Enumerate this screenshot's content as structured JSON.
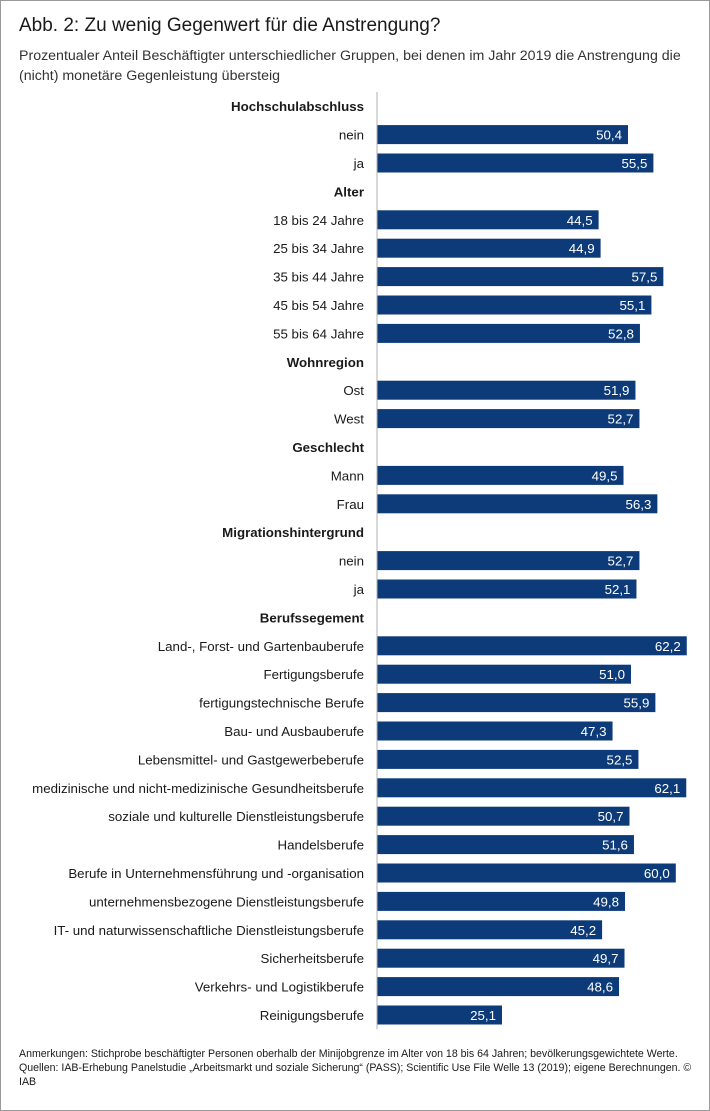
{
  "header": {
    "title": "Abb. 2: Zu wenig Gegenwert für die Anstrengung?",
    "subtitle": "Prozentualer Anteil Beschäftigter unterschiedlicher Gruppen, bei denen im Jahr 2019 die Anstrengung die (nicht) monetäre Gegenleistung übersteig"
  },
  "chart_data": {
    "type": "bar",
    "orientation": "horizontal",
    "bar_color": "#0d3b7a",
    "value_label_color": "#ffffff",
    "axis_line_color": "#b0b0b0",
    "grid": false,
    "legend": "none",
    "value_labels": "inside-end",
    "decimal_separator": ",",
    "groups": [
      {
        "name": "Hochschulabschluss",
        "items": [
          {
            "label": "nein",
            "value": 50.4
          },
          {
            "label": "ja",
            "value": 55.5
          }
        ]
      },
      {
        "name": "Alter",
        "items": [
          {
            "label": "18 bis 24 Jahre",
            "value": 44.5
          },
          {
            "label": "25 bis 34 Jahre",
            "value": 44.9
          },
          {
            "label": "35 bis 44 Jahre",
            "value": 57.5
          },
          {
            "label": "45 bis 54 Jahre",
            "value": 55.1
          },
          {
            "label": "55 bis 64 Jahre",
            "value": 52.8
          }
        ]
      },
      {
        "name": "Wohnregion",
        "items": [
          {
            "label": "Ost",
            "value": 51.9
          },
          {
            "label": "West",
            "value": 52.7
          }
        ]
      },
      {
        "name": "Geschlecht",
        "items": [
          {
            "label": "Mann",
            "value": 49.5
          },
          {
            "label": "Frau",
            "value": 56.3
          }
        ]
      },
      {
        "name": "Migrationshintergrund",
        "items": [
          {
            "label": "nein",
            "value": 52.7
          },
          {
            "label": "ja",
            "value": 52.1
          }
        ]
      },
      {
        "name": "Berufssegement",
        "items": [
          {
            "label": "Land-, Forst- und Gartenbauberufe",
            "value": 62.2
          },
          {
            "label": "Fertigungsberufe",
            "value": 51.0
          },
          {
            "label": "fertigungstechnische Berufe",
            "value": 55.9
          },
          {
            "label": "Bau- und Ausbauberufe",
            "value": 47.3
          },
          {
            "label": "Lebensmittel- und Gastgewerbeberufe",
            "value": 52.5
          },
          {
            "label": "medizinische und nicht-medizinische Gesundheitsberufe",
            "value": 62.1
          },
          {
            "label": "soziale und kulturelle Dienstleistungsberufe",
            "value": 50.7
          },
          {
            "label": "Handelsberufe",
            "value": 51.6
          },
          {
            "label": "Berufe in Unternehmensführung und -organisation",
            "value": 60.0
          },
          {
            "label": "unternehmensbezogene Dienstleistungsberufe",
            "value": 49.8
          },
          {
            "label": "IT- und naturwissenschaftliche Dienstleistungsberufe",
            "value": 45.2
          },
          {
            "label": "Sicherheitsberufe",
            "value": 49.7
          },
          {
            "label": "Verkehrs- und Logistikberufe",
            "value": 48.6
          },
          {
            "label": "Reinigungsberufe",
            "value": 25.1
          }
        ]
      }
    ]
  },
  "footer": {
    "note": "Anmerkungen: Stichprobe beschäftigter Personen oberhalb der Minijobgrenze im Alter von 18 bis 64 Jahren; bevölkerungsgewichtete Werte.",
    "sources": "Quellen: IAB-Erhebung Panelstudie „Arbeitsmarkt und soziale Sicherung“ (PASS); Scientific Use File Welle 13 (2019); eigene Berechnungen.  © IAB"
  }
}
